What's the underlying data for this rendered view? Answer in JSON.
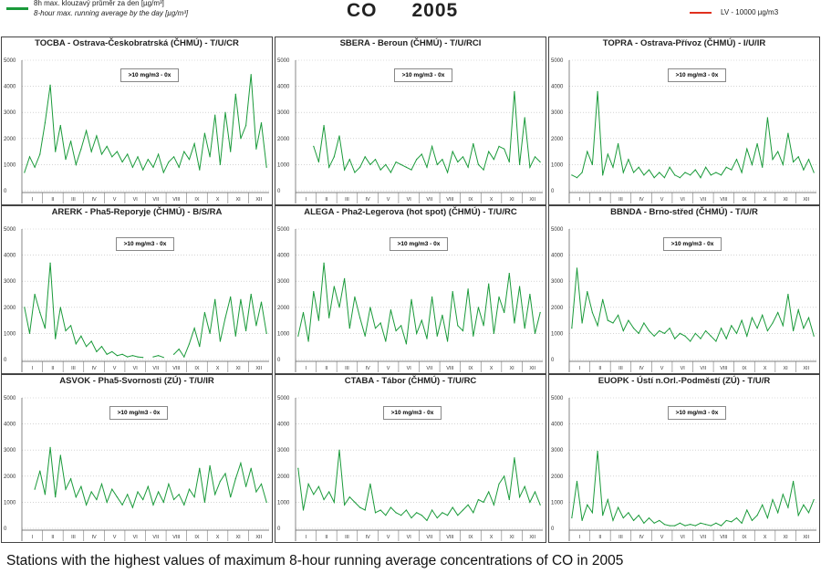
{
  "legend": {
    "series_cz": "8h max. klouzavý průměr za den [µg/m³]",
    "series_en": "8-hour max. running average by the day  [µg/m³]",
    "limit": "LV   - 10000 µg/m3",
    "series_color": "#1a9a3a",
    "limit_color": "#e0301e"
  },
  "title": {
    "pollutant": "CO",
    "year": "2005"
  },
  "caption": "Stations with the highest values of maximum 8-hour running average concentrations of CO in 2005",
  "chart_data": {
    "type": "line",
    "ylim": [
      0,
      5000
    ],
    "yticks": [
      "0",
      "1000",
      "2000",
      "3000",
      "4000",
      "5000"
    ],
    "months": [
      "I",
      "II",
      "III",
      "IV",
      "V",
      "VI",
      "VII",
      "VIII",
      "IX",
      "X",
      "XI",
      "XII"
    ],
    "x_resolution": "4 samples per month",
    "panels": [
      {
        "title": "TOCBA - Ostrava-Českobratrská (ČHMÚ) - T/U/CR",
        "box": ">10 mg/m3 - 0x",
        "values": [
          700,
          1300,
          900,
          1400,
          2600,
          4050,
          1500,
          2500,
          1200,
          1900,
          1000,
          1600,
          2300,
          1500,
          2100,
          1400,
          1700,
          1300,
          1500,
          1100,
          1400,
          900,
          1300,
          800,
          1200,
          900,
          1400,
          700,
          1100,
          1300,
          900,
          1500,
          1200,
          1800,
          800,
          2200,
          1300,
          2900,
          1000,
          3000,
          1500,
          3700,
          2000,
          2500,
          4450,
          1600,
          2600,
          900
        ]
      },
      {
        "title": "SBERA - Beroun (ČHMÚ) - T/U/RCI",
        "box": ">10 mg/m3 - 0x",
        "values": [
          null,
          null,
          null,
          1700,
          1100,
          2500,
          900,
          1300,
          2100,
          800,
          1200,
          700,
          900,
          1300,
          1000,
          1200,
          800,
          1000,
          700,
          1100,
          1000,
          900,
          800,
          1200,
          1400,
          900,
          1700,
          1000,
          1200,
          700,
          1500,
          1100,
          1300,
          900,
          1800,
          1000,
          800,
          1500,
          1200,
          1700,
          1600,
          1100,
          3800,
          1000,
          2800,
          900,
          1300,
          1100
        ]
      },
      {
        "title": "TOPRA - Ostrava-Přívoz (ČHMÚ) - I/U/IR",
        "box": ">10 mg/m3 - 0x",
        "values": [
          600,
          500,
          700,
          1500,
          1000,
          3800,
          600,
          1400,
          900,
          1800,
          700,
          1200,
          700,
          900,
          600,
          800,
          500,
          700,
          500,
          900,
          600,
          500,
          700,
          600,
          800,
          500,
          900,
          600,
          700,
          600,
          900,
          800,
          1200,
          700,
          1600,
          1000,
          1800,
          900,
          2800,
          1200,
          1500,
          1000,
          2200,
          1100,
          1300,
          800,
          1200,
          700
        ]
      },
      {
        "title": "ARERK - Pha5-Reporyje (ČHMÚ) - B/S/RA",
        "box": ">10 mg/m3 - 0x",
        "values": [
          2000,
          1000,
          2500,
          1800,
          1200,
          3700,
          800,
          2000,
          1100,
          1300,
          600,
          900,
          500,
          700,
          300,
          500,
          200,
          300,
          150,
          200,
          100,
          150,
          100,
          80,
          null,
          100,
          150,
          80,
          null,
          200,
          400,
          100,
          600,
          1200,
          500,
          1800,
          1000,
          2300,
          700,
          1600,
          2400,
          900,
          2300,
          1100,
          2500,
          1300,
          2200,
          1000
        ]
      },
      {
        "title": "ALEGA - Pha2-Legerova (hot spot) (ČHMÚ) - T/U/RC",
        "box": ">10 mg/m3 - 0x",
        "values": [
          900,
          1800,
          700,
          2600,
          1500,
          3700,
          1600,
          2800,
          2000,
          3100,
          1200,
          2400,
          1600,
          900,
          2000,
          1200,
          1400,
          700,
          1900,
          1100,
          1300,
          600,
          2300,
          1000,
          1500,
          800,
          2400,
          900,
          1700,
          700,
          2600,
          1300,
          1100,
          2700,
          900,
          2000,
          1300,
          2900,
          1000,
          2400,
          1800,
          3300,
          1400,
          2800,
          1200,
          2500,
          1000,
          1800
        ]
      },
      {
        "title": "BBNDA - Brno-střed (ČHMÚ) - T/U/R",
        "box": ">10 mg/m3 - 0x",
        "values": [
          1200,
          3500,
          1400,
          2600,
          1800,
          1300,
          2300,
          1500,
          1400,
          1700,
          1100,
          1500,
          1200,
          1000,
          1400,
          1100,
          900,
          1100,
          1000,
          1200,
          800,
          1000,
          900,
          700,
          1000,
          800,
          1100,
          900,
          700,
          1200,
          800,
          1300,
          1000,
          1500,
          900,
          1600,
          1200,
          1700,
          1100,
          1400,
          1800,
          1300,
          2500,
          1100,
          1900,
          1200,
          1600,
          900
        ]
      },
      {
        "title": "ASVOK - Pha5-Svornosti (ZÚ) - T/U/IR",
        "box": ">10 mg/m3 - 0x",
        "values": [
          null,
          null,
          1500,
          2200,
          1300,
          3100,
          1200,
          2800,
          1500,
          1900,
          1200,
          1600,
          900,
          1400,
          1100,
          1700,
          1000,
          1500,
          1200,
          900,
          1300,
          800,
          1400,
          1100,
          1600,
          900,
          1400,
          1000,
          1700,
          1100,
          1300,
          900,
          1500,
          1200,
          2300,
          1000,
          2400,
          1300,
          1800,
          2100,
          1200,
          1900,
          2500,
          1600,
          2300,
          1400,
          1700,
          1000
        ]
      },
      {
        "title": "CTABA - Tábor (ČHMÚ) - T/U/RC",
        "box": ">10 mg/m3 - 0x",
        "values": [
          2300,
          700,
          1700,
          1300,
          1600,
          1100,
          1400,
          1000,
          3000,
          900,
          1200,
          1000,
          800,
          700,
          1700,
          600,
          700,
          500,
          800,
          600,
          500,
          700,
          400,
          600,
          500,
          300,
          700,
          400,
          600,
          500,
          800,
          500,
          700,
          900,
          600,
          1100,
          1000,
          1400,
          900,
          1700,
          2000,
          1100,
          2700,
          1200,
          1600,
          1000,
          1400,
          900
        ]
      },
      {
        "title": "EUOPK - Ústí n.Orl.-Podměstí (ZÚ) - T/U/R",
        "box": ">10 mg/m3 - 0x",
        "values": [
          400,
          1800,
          300,
          900,
          600,
          2950,
          500,
          1100,
          300,
          800,
          400,
          600,
          300,
          500,
          200,
          400,
          200,
          300,
          150,
          100,
          100,
          200,
          100,
          150,
          100,
          200,
          150,
          100,
          200,
          100,
          300,
          250,
          400,
          200,
          700,
          300,
          500,
          900,
          400,
          1100,
          600,
          1300,
          800,
          1800,
          500,
          900,
          600,
          1100
        ]
      }
    ]
  }
}
